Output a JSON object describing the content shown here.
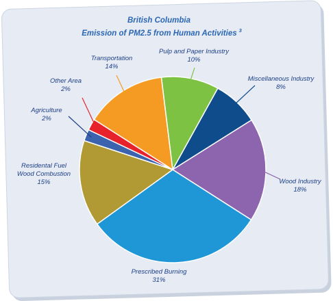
{
  "chart_data": {
    "type": "pie",
    "title": "British Columbia",
    "subtitle": "Emission of PM2.5 from Human Activities",
    "subtitle_superscript": "3",
    "slices": [
      {
        "label": "Pulp and Paper Industry",
        "value": 10,
        "value_label": "10%",
        "color": "#7dc243"
      },
      {
        "label": "Miscellaneous Industry",
        "value": 8,
        "value_label": "8%",
        "color": "#0f4c8c"
      },
      {
        "label": "Wood Industry",
        "value": 18,
        "value_label": "18%",
        "color": "#8d64ae"
      },
      {
        "label": "Prescribed Burning",
        "value": 31,
        "value_label": "31%",
        "color": "#1f97d7"
      },
      {
        "label": "Residental Fuel Wood Combustion",
        "value": 15,
        "value_label": "15%",
        "color": "#b19a33"
      },
      {
        "label": "Agriculture",
        "value": 2,
        "value_label": "2%",
        "color": "#3b63ae"
      },
      {
        "label": "Other Area",
        "value": 2,
        "value_label": "2%",
        "color": "#e8222a"
      },
      {
        "label": "Transportation",
        "value": 14,
        "value_label": "14%",
        "color": "#f59b23"
      }
    ]
  }
}
